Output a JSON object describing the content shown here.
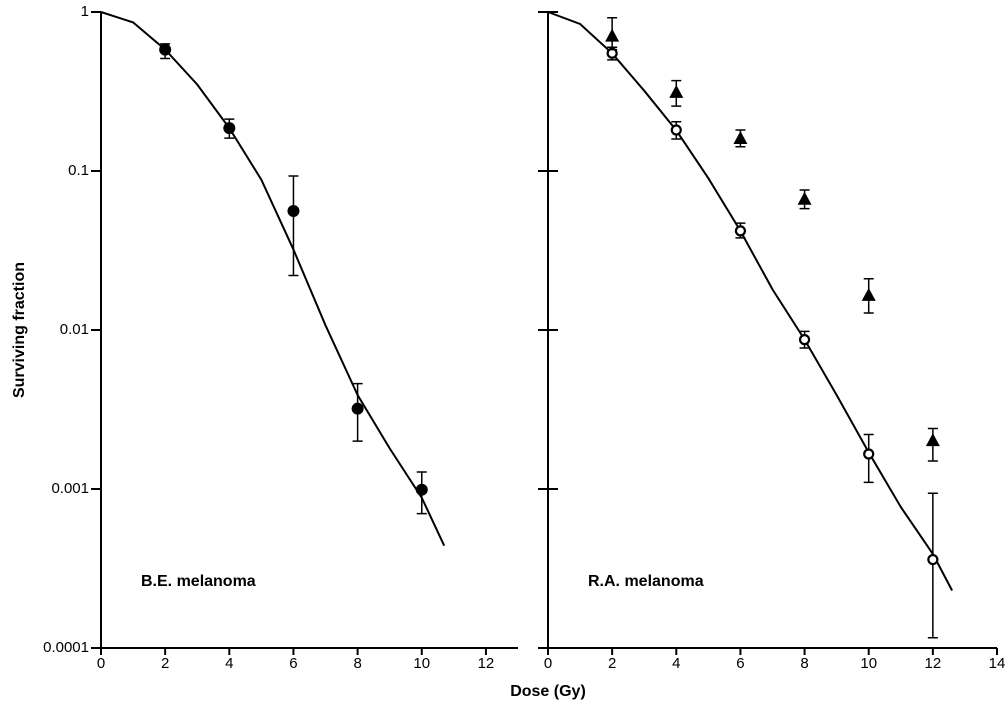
{
  "chart_data": [
    {
      "type": "scatter",
      "annotation": "B.E. melanoma",
      "ylabel": "Surviving fraction",
      "log_y": true,
      "xlim": [
        0,
        13
      ],
      "xticks": [
        0,
        2,
        4,
        6,
        8,
        10,
        12
      ],
      "ylim": [
        0.0001,
        1
      ],
      "yticks": [
        1,
        0.1,
        0.01,
        0.001,
        0.0001
      ],
      "x": [
        2,
        4,
        6,
        8,
        10
      ],
      "series": [
        {
          "marker": "filled-circle",
          "color": "#000000",
          "values": [
            0.58,
            0.186,
            0.056,
            0.0032,
            0.00099
          ],
          "upper": [
            0.63,
            0.212,
            0.093,
            0.0046,
            0.00128
          ],
          "lower": [
            0.51,
            0.161,
            0.022,
            0.002,
            0.0007
          ]
        }
      ],
      "fit": {
        "x": [
          0,
          1,
          2,
          3,
          4,
          5,
          6,
          7,
          8,
          9,
          10,
          10.7
        ],
        "values": [
          1,
          0.86,
          0.58,
          0.35,
          0.186,
          0.088,
          0.032,
          0.0107,
          0.0039,
          0.0018,
          0.00088,
          0.00044
        ]
      }
    },
    {
      "type": "scatter",
      "annotation": "R.A. melanoma",
      "xlabel": "Dose (Gy)",
      "log_y": true,
      "xlim": [
        0,
        14
      ],
      "xticks": [
        0,
        2,
        4,
        6,
        8,
        10,
        12,
        14
      ],
      "ylim": [
        0.0001,
        1
      ],
      "x": [
        2,
        4,
        6,
        8,
        10,
        12
      ],
      "series": [
        {
          "marker": "open-circle",
          "color": "#000000",
          "values": [
            0.55,
            0.181,
            0.042,
            0.0087,
            0.00166,
            0.00036
          ],
          "upper": [
            0.6,
            0.204,
            0.047,
            0.0098,
            0.0022,
            0.00094
          ],
          "lower": [
            0.5,
            0.159,
            0.038,
            0.0077,
            0.0011,
            0.000116
          ]
        },
        {
          "marker": "filled-triangle",
          "color": "#000000",
          "values": [
            0.7,
            0.31,
            0.159,
            0.066,
            0.0164,
            0.002
          ],
          "upper": [
            0.92,
            0.37,
            0.181,
            0.076,
            0.021,
            0.0024
          ],
          "lower": [
            0.58,
            0.256,
            0.142,
            0.058,
            0.0128,
            0.0015
          ]
        }
      ],
      "fit": {
        "x": [
          0,
          1,
          2,
          3,
          4,
          5,
          6,
          7,
          8,
          9,
          10,
          11,
          12,
          12.6
        ],
        "values": [
          1,
          0.84,
          0.55,
          0.32,
          0.18,
          0.09,
          0.042,
          0.018,
          0.0087,
          0.0039,
          0.0017,
          0.00077,
          0.00039,
          0.00023
        ]
      }
    }
  ]
}
